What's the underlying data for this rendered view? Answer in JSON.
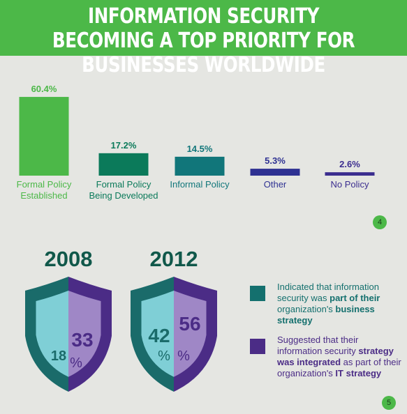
{
  "header": {
    "title": "INFORMATION SECURITY BECOMING A TOP PRIORITY FOR BUSINESSES WORLDWIDE"
  },
  "chart_data": {
    "type": "bar",
    "categories": [
      "Formal Policy Established",
      "Formal Policy Being Developed",
      "Informal Policy",
      "Other",
      "No Policy"
    ],
    "values": [
      60.4,
      17.2,
      14.5,
      5.3,
      2.6
    ],
    "value_labels": [
      "60.4%",
      "17.2%",
      "14.5%",
      "5.3%",
      "2.6%"
    ],
    "colors": [
      "#4cb848",
      "#0b7a5a",
      "#11767a",
      "#2e3192",
      "#3b2d8f"
    ],
    "grid": false
  },
  "page_numbers": [
    "4",
    "5"
  ],
  "shields": [
    {
      "year": "2008",
      "business": 18,
      "it": 33,
      "units": [
        "%"
      ]
    },
    {
      "year": "2012",
      "business": 42,
      "it": 56,
      "units": [
        "%",
        "%"
      ]
    }
  ],
  "legend": [
    {
      "color": "#14706e",
      "text": [
        {
          "text": "Indicated that information security was ",
          "bold": false
        },
        {
          "text": "part of their",
          "bold": true
        },
        {
          "text": " organization's ",
          "bold": false
        },
        {
          "text": "business strategy",
          "bold": true
        }
      ]
    },
    {
      "color": "#4b2c86",
      "text": [
        {
          "text": "Suggested that their information security ",
          "bold": false
        },
        {
          "text": "strategy was integrated",
          "bold": true
        },
        {
          "text": " as part of their organization's ",
          "bold": false
        },
        {
          "text": "IT strategy",
          "bold": true
        }
      ]
    }
  ]
}
